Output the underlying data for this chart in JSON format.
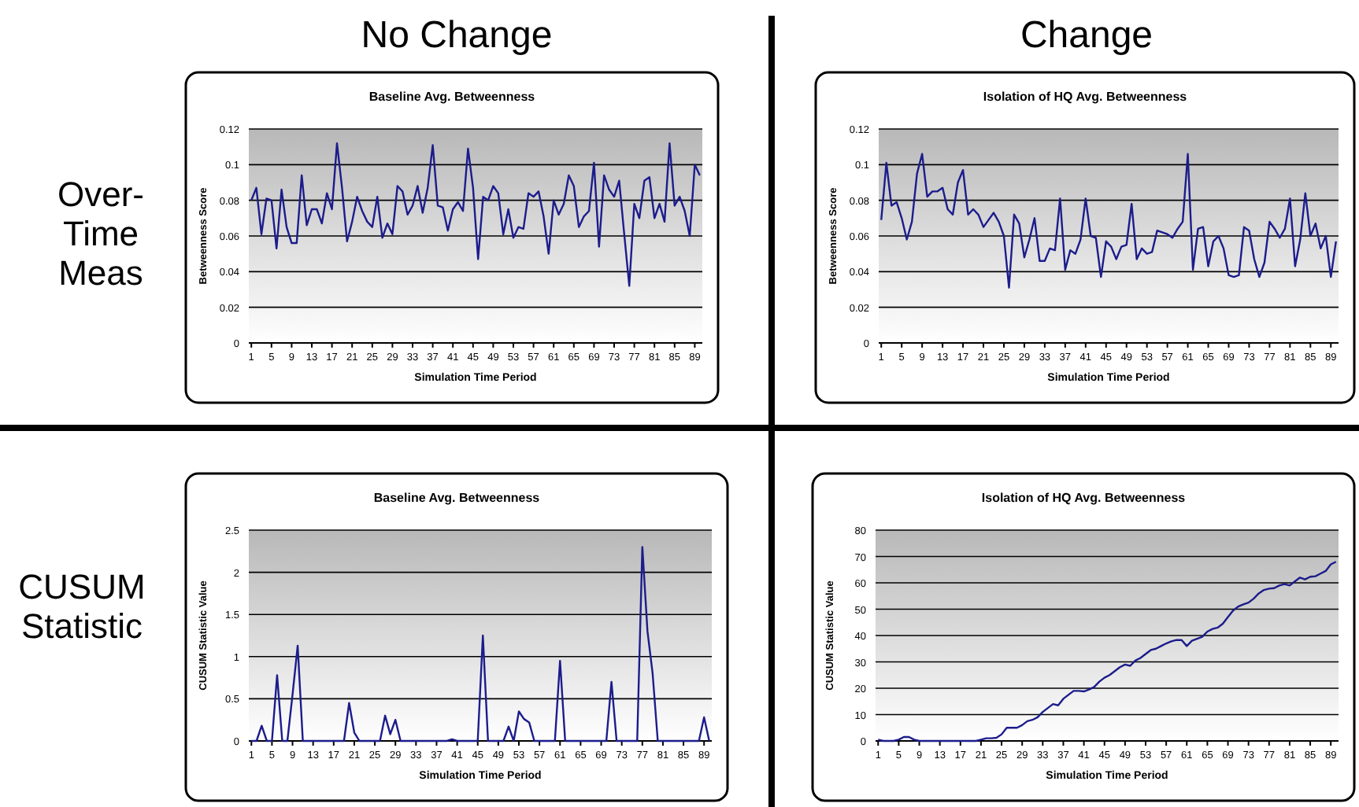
{
  "chart_data": [
    {
      "type": "line",
      "title": "Baseline Avg. Betweenness",
      "xlabel": "Simulation Time Period",
      "ylabel": "Betweenness Score",
      "x": [
        1,
        2,
        3,
        4,
        5,
        6,
        7,
        8,
        9,
        10,
        11,
        12,
        13,
        14,
        15,
        16,
        17,
        18,
        19,
        20,
        21,
        22,
        23,
        24,
        25,
        26,
        27,
        28,
        29,
        30,
        31,
        32,
        33,
        34,
        35,
        36,
        37,
        38,
        39,
        40,
        41,
        42,
        43,
        44,
        45,
        46,
        47,
        48,
        49,
        50,
        51,
        52,
        53,
        54,
        55,
        56,
        57,
        58,
        59,
        60,
        61,
        62,
        63,
        64,
        65,
        66,
        67,
        68,
        69,
        70,
        71,
        72,
        73,
        74,
        75,
        76,
        77,
        78,
        79,
        80,
        81,
        82,
        83,
        84,
        85,
        86,
        87,
        88,
        89,
        90
      ],
      "xlim": [
        0.5,
        90.5
      ],
      "xticks": [
        1,
        5,
        9,
        13,
        17,
        21,
        25,
        29,
        33,
        37,
        41,
        45,
        49,
        53,
        57,
        61,
        65,
        69,
        73,
        77,
        81,
        85,
        89
      ],
      "ylim": [
        0,
        0.12
      ],
      "yticks": [
        0,
        0.02,
        0.04,
        0.06,
        0.08,
        0.1,
        0.12
      ],
      "grid": "y",
      "series": [
        {
          "color": "#1c1c8c",
          "values": [
            0.08,
            0.087,
            0.061,
            0.081,
            0.08,
            0.053,
            0.086,
            0.065,
            0.056,
            0.056,
            0.094,
            0.066,
            0.075,
            0.075,
            0.067,
            0.084,
            0.075,
            0.112,
            0.087,
            0.057,
            0.068,
            0.082,
            0.074,
            0.068,
            0.065,
            0.082,
            0.059,
            0.067,
            0.061,
            0.088,
            0.085,
            0.072,
            0.077,
            0.088,
            0.073,
            0.087,
            0.111,
            0.077,
            0.076,
            0.063,
            0.075,
            0.079,
            0.074,
            0.109,
            0.087,
            0.047,
            0.082,
            0.08,
            0.088,
            0.084,
            0.061,
            0.075,
            0.059,
            0.065,
            0.064,
            0.084,
            0.082,
            0.085,
            0.071,
            0.05,
            0.08,
            0.072,
            0.078,
            0.094,
            0.088,
            0.065,
            0.071,
            0.074,
            0.101,
            0.054,
            0.094,
            0.086,
            0.082,
            0.091,
            0.061,
            0.032,
            0.078,
            0.07,
            0.091,
            0.093,
            0.07,
            0.078,
            0.068,
            0.112,
            0.077,
            0.082,
            0.074,
            0.06,
            0.1,
            0.094
          ]
        }
      ]
    },
    {
      "type": "line",
      "title": "Isolation of HQ Avg. Betweenness",
      "xlabel": "Simulation Time Period",
      "ylabel": "Betweenness Score",
      "x": [
        1,
        2,
        3,
        4,
        5,
        6,
        7,
        8,
        9,
        10,
        11,
        12,
        13,
        14,
        15,
        16,
        17,
        18,
        19,
        20,
        21,
        22,
        23,
        24,
        25,
        26,
        27,
        28,
        29,
        30,
        31,
        32,
        33,
        34,
        35,
        36,
        37,
        38,
        39,
        40,
        41,
        42,
        43,
        44,
        45,
        46,
        47,
        48,
        49,
        50,
        51,
        52,
        53,
        54,
        55,
        56,
        57,
        58,
        59,
        60,
        61,
        62,
        63,
        64,
        65,
        66,
        67,
        68,
        69,
        70,
        71,
        72,
        73,
        74,
        75,
        76,
        77,
        78,
        79,
        80,
        81,
        82,
        83,
        84,
        85,
        86,
        87,
        88,
        89,
        90
      ],
      "xlim": [
        0.5,
        90.5
      ],
      "xticks": [
        1,
        5,
        9,
        13,
        17,
        21,
        25,
        29,
        33,
        37,
        41,
        45,
        49,
        53,
        57,
        61,
        65,
        69,
        73,
        77,
        81,
        85,
        89
      ],
      "ylim": [
        0,
        0.12
      ],
      "yticks": [
        0,
        0.02,
        0.04,
        0.06,
        0.08,
        0.1,
        0.12
      ],
      "grid": "y",
      "series": [
        {
          "color": "#1c1c8c",
          "values": [
            0.069,
            0.101,
            0.077,
            0.079,
            0.07,
            0.058,
            0.068,
            0.095,
            0.106,
            0.082,
            0.085,
            0.085,
            0.087,
            0.075,
            0.072,
            0.09,
            0.097,
            0.072,
            0.075,
            0.072,
            0.065,
            0.069,
            0.073,
            0.068,
            0.06,
            0.031,
            0.072,
            0.067,
            0.048,
            0.058,
            0.07,
            0.046,
            0.046,
            0.053,
            0.052,
            0.081,
            0.041,
            0.052,
            0.05,
            0.058,
            0.081,
            0.06,
            0.059,
            0.037,
            0.057,
            0.054,
            0.047,
            0.054,
            0.055,
            0.078,
            0.047,
            0.053,
            0.05,
            0.051,
            0.063,
            0.062,
            0.061,
            0.059,
            0.064,
            0.068,
            0.106,
            0.041,
            0.064,
            0.065,
            0.043,
            0.057,
            0.06,
            0.053,
            0.038,
            0.037,
            0.038,
            0.065,
            0.063,
            0.047,
            0.037,
            0.045,
            0.068,
            0.064,
            0.059,
            0.064,
            0.081,
            0.043,
            0.058,
            0.084,
            0.06,
            0.067,
            0.053,
            0.06,
            0.037,
            0.057
          ]
        }
      ]
    },
    {
      "type": "line",
      "title": "Baseline Avg. Betweenness",
      "xlabel": "Simulation Time Period",
      "ylabel": "CUSUM Statistic Value",
      "x": [
        1,
        2,
        3,
        4,
        5,
        6,
        7,
        8,
        9,
        10,
        11,
        12,
        13,
        14,
        15,
        16,
        17,
        18,
        19,
        20,
        21,
        22,
        23,
        24,
        25,
        26,
        27,
        28,
        29,
        30,
        31,
        32,
        33,
        34,
        35,
        36,
        37,
        38,
        39,
        40,
        41,
        42,
        43,
        44,
        45,
        46,
        47,
        48,
        49,
        50,
        51,
        52,
        53,
        54,
        55,
        56,
        57,
        58,
        59,
        60,
        61,
        62,
        63,
        64,
        65,
        66,
        67,
        68,
        69,
        70,
        71,
        72,
        73,
        74,
        75,
        76,
        77,
        78,
        79,
        80,
        81,
        82,
        83,
        84,
        85,
        86,
        87,
        88,
        89,
        90
      ],
      "xlim": [
        0.5,
        90.5
      ],
      "xticks": [
        1,
        5,
        9,
        13,
        17,
        21,
        25,
        29,
        33,
        37,
        41,
        45,
        49,
        53,
        57,
        61,
        65,
        69,
        73,
        77,
        81,
        85,
        89
      ],
      "ylim": [
        0,
        2.5
      ],
      "yticks": [
        0,
        0.5,
        1,
        1.5,
        2,
        2.5
      ],
      "grid": "y",
      "series": [
        {
          "color": "#1c1c8c",
          "values": [
            0,
            0,
            0.18,
            0,
            0,
            0.78,
            0,
            0,
            0.55,
            1.13,
            0,
            0,
            0,
            0,
            0,
            0,
            0,
            0,
            0,
            0.45,
            0.1,
            0,
            0,
            0,
            0,
            0,
            0.3,
            0.08,
            0.25,
            0,
            0,
            0,
            0,
            0,
            0,
            0,
            0,
            0,
            0,
            0.02,
            0,
            0,
            0,
            0,
            0,
            1.25,
            0,
            0,
            0,
            0,
            0.17,
            0,
            0.35,
            0.26,
            0.22,
            0,
            0,
            0,
            0,
            0,
            0.95,
            0,
            0,
            0,
            0,
            0,
            0,
            0,
            0,
            0,
            0.7,
            0,
            0,
            0,
            0,
            0,
            2.3,
            1.3,
            0.8,
            0,
            0,
            0,
            0,
            0,
            0,
            0,
            0,
            0,
            0.28,
            0
          ]
        }
      ]
    },
    {
      "type": "line",
      "title": "Isolation of HQ Avg. Betweenness",
      "xlabel": "Simulation Time Period",
      "ylabel": "CUSUM Statistic Value",
      "x": [
        1,
        2,
        3,
        4,
        5,
        6,
        7,
        8,
        9,
        10,
        11,
        12,
        13,
        14,
        15,
        16,
        17,
        18,
        19,
        20,
        21,
        22,
        23,
        24,
        25,
        26,
        27,
        28,
        29,
        30,
        31,
        32,
        33,
        34,
        35,
        36,
        37,
        38,
        39,
        40,
        41,
        42,
        43,
        44,
        45,
        46,
        47,
        48,
        49,
        50,
        51,
        52,
        53,
        54,
        55,
        56,
        57,
        58,
        59,
        60,
        61,
        62,
        63,
        64,
        65,
        66,
        67,
        68,
        69,
        70,
        71,
        72,
        73,
        74,
        75,
        76,
        77,
        78,
        79,
        80,
        81,
        82,
        83,
        84,
        85,
        86,
        87,
        88,
        89,
        90
      ],
      "xlim": [
        0.5,
        90.5
      ],
      "xticks": [
        1,
        5,
        9,
        13,
        17,
        21,
        25,
        29,
        33,
        37,
        41,
        45,
        49,
        53,
        57,
        61,
        65,
        69,
        73,
        77,
        81,
        85,
        89
      ],
      "ylim": [
        0,
        80
      ],
      "yticks": [
        0,
        10,
        20,
        30,
        40,
        50,
        60,
        70,
        80
      ],
      "grid": "y",
      "series": [
        {
          "color": "#1c1c8c",
          "values": [
            0.5,
            0,
            0,
            0,
            0.5,
            1.5,
            1.5,
            0.5,
            0,
            0,
            0,
            0,
            0,
            0,
            0,
            0,
            0,
            0,
            0,
            0,
            0.5,
            1,
            1,
            1.2,
            2.5,
            5,
            5,
            5,
            6,
            7.5,
            8,
            9,
            11,
            12.5,
            14,
            13.5,
            16,
            17.5,
            19,
            19,
            18.8,
            19.5,
            20.5,
            22.5,
            24,
            25,
            26.5,
            28,
            29,
            28.5,
            30.5,
            31.5,
            33,
            34.5,
            35,
            36,
            37,
            37.8,
            38.3,
            38.3,
            36,
            38,
            38.8,
            39.5,
            41.5,
            42.5,
            43,
            44.5,
            47,
            49.5,
            51,
            51.8,
            52.5,
            54,
            56,
            57.3,
            57.8,
            58,
            59,
            59.5,
            59,
            60.5,
            62,
            61.3,
            62.3,
            62.5,
            63.5,
            64.5,
            67,
            68
          ]
        }
      ]
    },
    {
      "type": "other",
      "annotations": [
        "No Change",
        "Change",
        "Over-Time Meas",
        "CUSUM Statistic"
      ]
    }
  ]
}
